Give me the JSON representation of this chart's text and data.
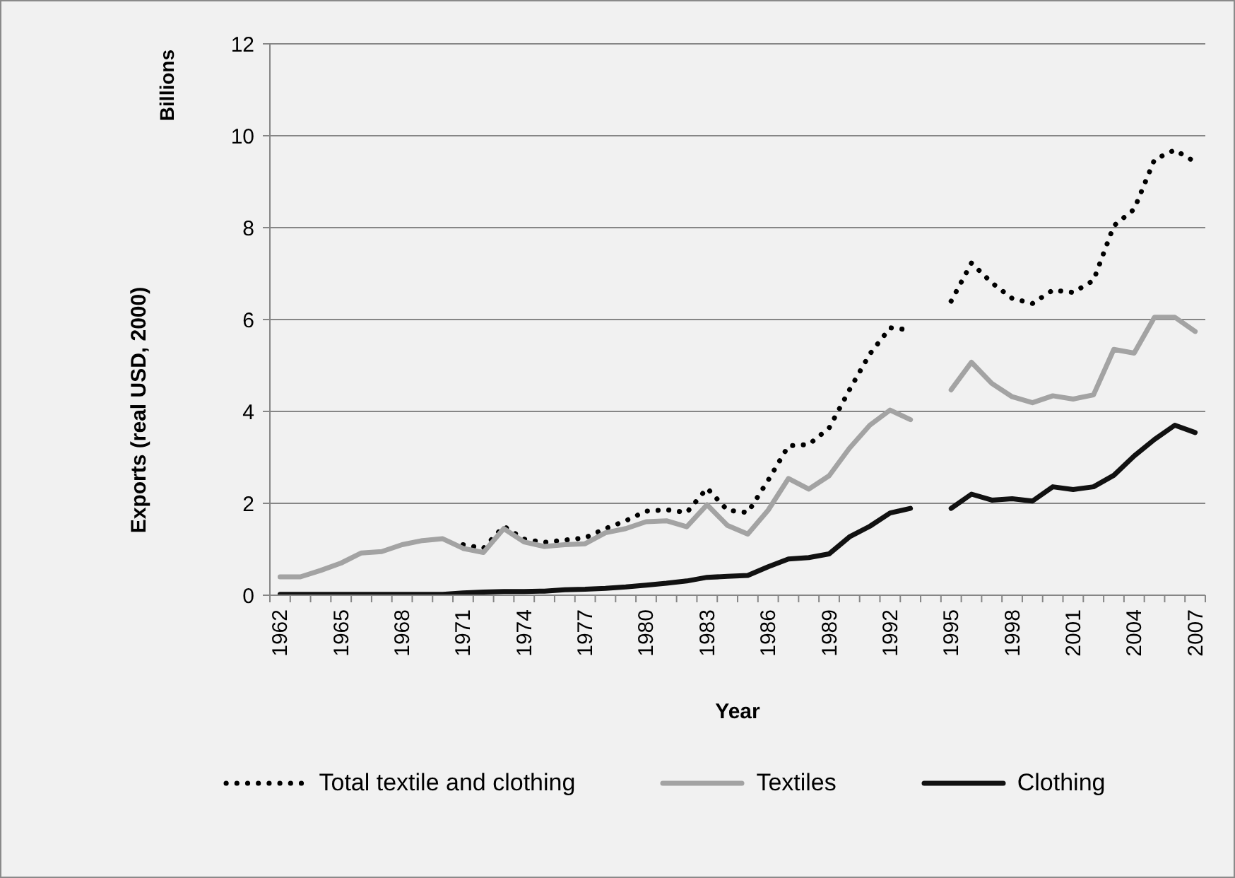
{
  "chart_data": {
    "type": "line",
    "xlabel": "Year",
    "ylabel": "Exports (real USD, 2000)",
    "annotations": [
      "Billions"
    ],
    "categories": [
      "1962",
      null,
      null,
      "1965",
      null,
      null,
      "1968",
      null,
      null,
      "1971",
      null,
      null,
      "1974",
      null,
      null,
      "1977",
      null,
      null,
      "1980",
      null,
      null,
      "1983",
      null,
      null,
      "1986",
      null,
      null,
      "1989",
      null,
      null,
      "1992",
      null,
      null,
      "1995",
      null,
      null,
      "1998",
      null,
      null,
      "2001",
      null,
      null,
      "2004",
      null,
      null,
      "2007"
    ],
    "ylim": [
      0,
      12
    ],
    "yticks": [
      0,
      2,
      4,
      6,
      8,
      10,
      12
    ],
    "grid": "y",
    "legend": "bottom",
    "marker": "none",
    "series": [
      {
        "name": "Total textile and clothing",
        "color": "#000000",
        "line_style": "dotted",
        "values": [
          null,
          null,
          null,
          null,
          null,
          null,
          null,
          null,
          null,
          1.1,
          1.02,
          1.5,
          1.22,
          1.15,
          1.2,
          1.25,
          1.45,
          1.62,
          1.83,
          1.86,
          1.8,
          2.33,
          1.85,
          1.8,
          2.5,
          3.25,
          3.28,
          3.64,
          4.47,
          5.25,
          5.82,
          5.77,
          null,
          6.4,
          7.23,
          6.8,
          6.46,
          6.35,
          6.64,
          6.59,
          6.85,
          8.04,
          8.4,
          9.48,
          9.69,
          9.43
        ]
      },
      {
        "name": "Textiles",
        "color": "#a3a3a3",
        "line_style": "solid",
        "values": [
          0.4,
          0.4,
          0.54,
          0.7,
          0.92,
          0.95,
          1.1,
          1.19,
          1.23,
          1.02,
          0.93,
          1.45,
          1.16,
          1.06,
          1.1,
          1.12,
          1.36,
          1.45,
          1.6,
          1.62,
          1.49,
          1.97,
          1.52,
          1.33,
          1.85,
          2.54,
          2.31,
          2.6,
          3.2,
          3.7,
          4.03,
          3.82,
          null,
          4.47,
          5.07,
          4.61,
          4.32,
          4.19,
          4.34,
          4.27,
          4.36,
          5.35,
          5.27,
          6.05,
          6.05,
          5.74
        ]
      },
      {
        "name": "Clothing",
        "color": "#111111",
        "line_style": "solid",
        "values": [
          0.02,
          0.02,
          0.02,
          0.02,
          0.02,
          0.02,
          0.02,
          0.02,
          0.02,
          0.05,
          0.07,
          0.08,
          0.08,
          0.09,
          0.12,
          0.13,
          0.15,
          0.18,
          0.22,
          0.26,
          0.31,
          0.39,
          0.41,
          0.43,
          0.62,
          0.79,
          0.82,
          0.9,
          1.27,
          1.5,
          1.79,
          1.89,
          null,
          1.89,
          2.2,
          2.07,
          2.1,
          2.05,
          2.36,
          2.3,
          2.36,
          2.61,
          3.03,
          3.39,
          3.7,
          3.54
        ]
      }
    ]
  }
}
